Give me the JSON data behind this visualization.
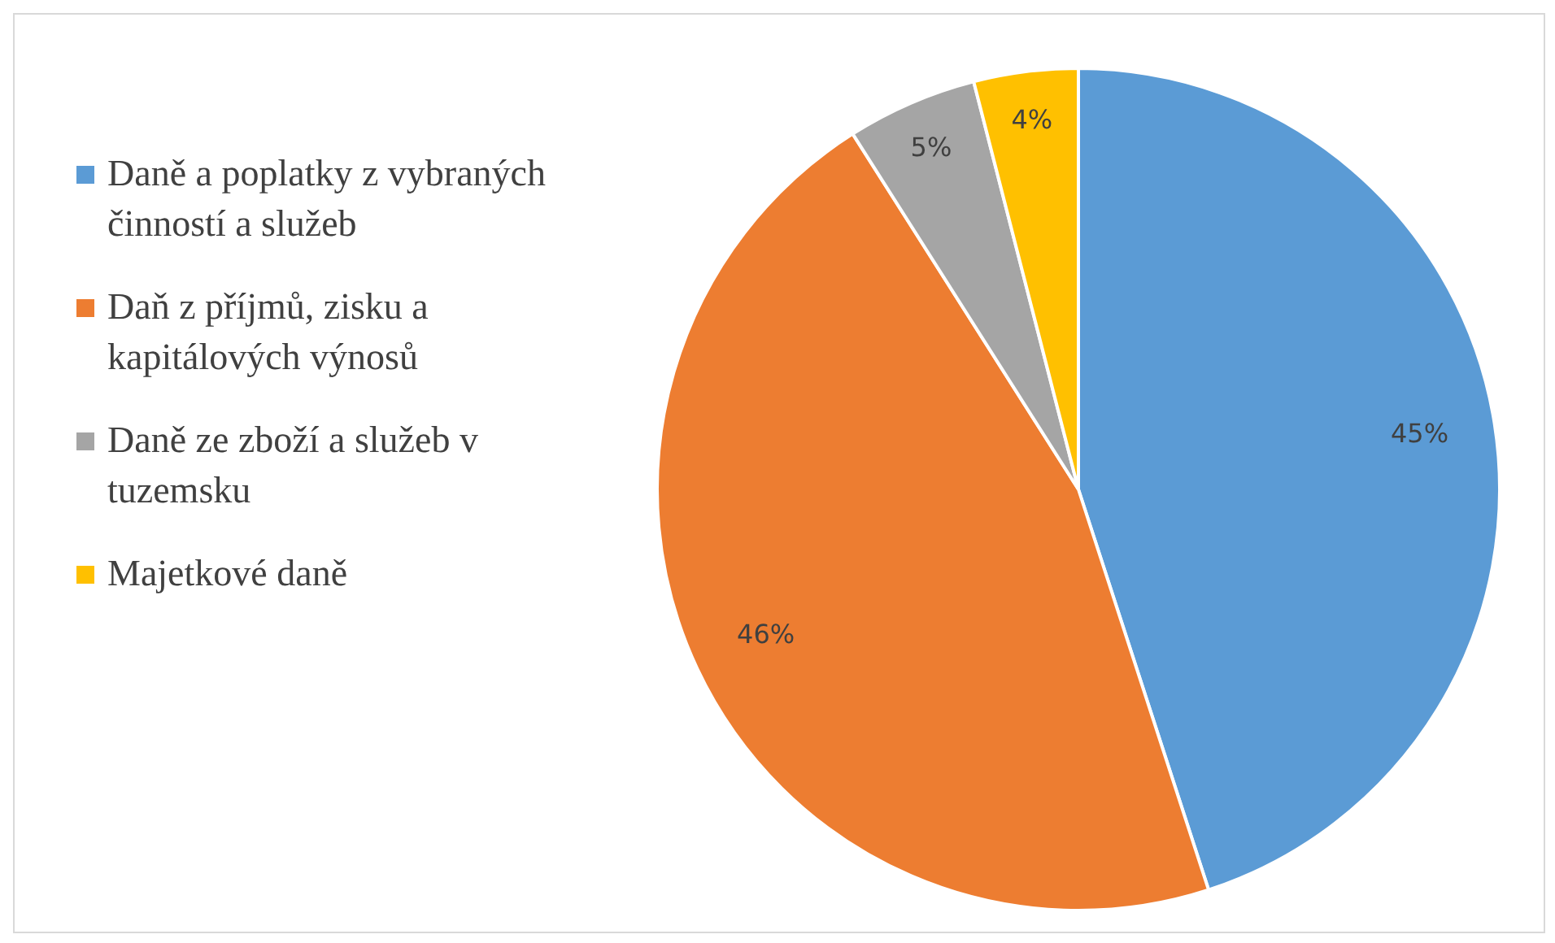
{
  "chart_data": {
    "type": "pie",
    "categories": [
      "Daně a poplatky z vybraných činností a služeb",
      "Daň z příjmů, zisku a kapitálových výnosů",
      "Daně ze zboží a služeb v tuzemsku",
      "Majetkové daně"
    ],
    "values": [
      45,
      46,
      5,
      4
    ],
    "colors": [
      "#5b9bd5",
      "#ed7d31",
      "#a5a5a5",
      "#ffc000"
    ],
    "value_labels": [
      "45%",
      "46%",
      "5%",
      "4%"
    ],
    "legend": "left"
  }
}
